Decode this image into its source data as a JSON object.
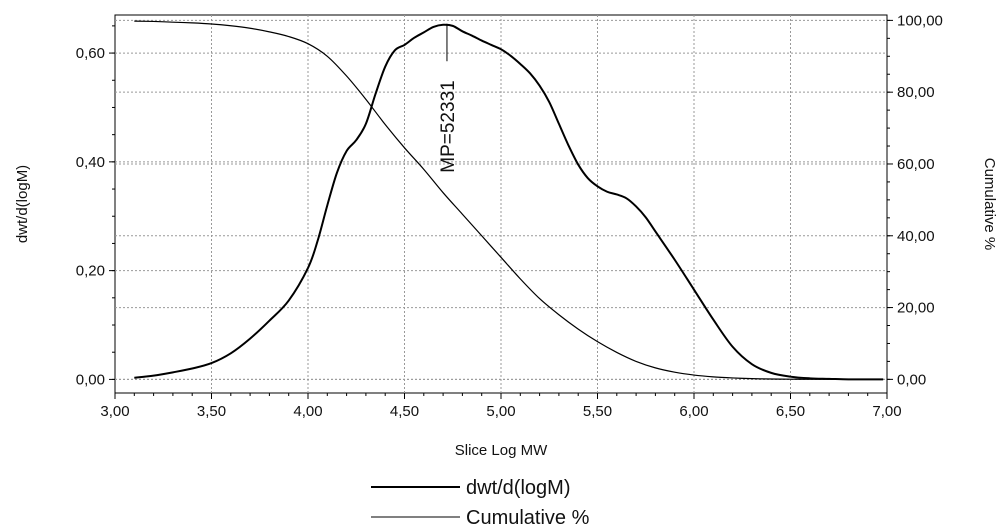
{
  "chart_data": {
    "type": "line",
    "title": "",
    "xlabel": "Slice Log MW",
    "ylabel_left": "dwt/d(logM)",
    "ylabel_right": "Cumulative %",
    "xlim": [
      3.0,
      7.0
    ],
    "ylim_left": [
      -0.025,
      0.67
    ],
    "ylim_right": [
      -3.8,
      101.5
    ],
    "grid": true,
    "legend_position": "bottom-center",
    "x_ticks": [
      3.0,
      3.5,
      4.0,
      4.5,
      5.0,
      5.5,
      6.0,
      6.5,
      7.0
    ],
    "x_tick_labels": [
      "3,00",
      "3,50",
      "4,00",
      "4,50",
      "5,00",
      "5,50",
      "6,00",
      "6,50",
      "7,00"
    ],
    "y_left_ticks": [
      0.0,
      0.2,
      0.4,
      0.6
    ],
    "y_left_tick_labels": [
      "0,00",
      "0,20",
      "0,40",
      "0,60"
    ],
    "y_right_ticks": [
      0,
      20,
      40,
      60,
      80,
      100
    ],
    "y_right_tick_labels": [
      "0,00",
      "20,00",
      "40,00",
      "60,00",
      "80,00",
      "100,00"
    ],
    "annotation": {
      "text": "MP=52331",
      "x": 4.72
    },
    "series": [
      {
        "name": "dwt/d(logM)",
        "axis": "left",
        "x": [
          3.1,
          3.2,
          3.3,
          3.4,
          3.5,
          3.6,
          3.7,
          3.8,
          3.9,
          4.0,
          4.05,
          4.1,
          4.15,
          4.2,
          4.25,
          4.3,
          4.35,
          4.4,
          4.45,
          4.5,
          4.55,
          4.6,
          4.65,
          4.7,
          4.75,
          4.8,
          4.85,
          4.9,
          4.95,
          5.0,
          5.05,
          5.1,
          5.15,
          5.2,
          5.25,
          5.3,
          5.35,
          5.4,
          5.45,
          5.5,
          5.55,
          5.6,
          5.65,
          5.7,
          5.75,
          5.8,
          5.9,
          6.0,
          6.1,
          6.2,
          6.3,
          6.4,
          6.5,
          6.6,
          6.7,
          6.8,
          6.9,
          6.98
        ],
        "y": [
          0.003,
          0.007,
          0.013,
          0.02,
          0.03,
          0.048,
          0.075,
          0.108,
          0.145,
          0.205,
          0.255,
          0.32,
          0.38,
          0.42,
          0.44,
          0.47,
          0.525,
          0.575,
          0.605,
          0.615,
          0.628,
          0.638,
          0.648,
          0.652,
          0.65,
          0.64,
          0.632,
          0.623,
          0.615,
          0.607,
          0.595,
          0.58,
          0.563,
          0.54,
          0.51,
          0.47,
          0.43,
          0.395,
          0.37,
          0.355,
          0.345,
          0.34,
          0.333,
          0.318,
          0.298,
          0.272,
          0.22,
          0.165,
          0.11,
          0.06,
          0.028,
          0.012,
          0.005,
          0.002,
          0.001,
          0.0,
          0.0,
          0.0
        ]
      },
      {
        "name": "Cumulative %",
        "axis": "right",
        "x": [
          3.1,
          3.2,
          3.3,
          3.4,
          3.5,
          3.6,
          3.7,
          3.8,
          3.9,
          4.0,
          4.1,
          4.2,
          4.3,
          4.4,
          4.5,
          4.6,
          4.7,
          4.8,
          4.9,
          5.0,
          5.1,
          5.2,
          5.3,
          5.4,
          5.5,
          5.6,
          5.7,
          5.8,
          5.9,
          6.0,
          6.1,
          6.2,
          6.3,
          6.4,
          6.5,
          6.6,
          6.7,
          6.8,
          6.9,
          6.98
        ],
        "y": [
          99.8,
          99.7,
          99.5,
          99.3,
          99.0,
          98.5,
          97.8,
          96.8,
          95.5,
          93.5,
          90.0,
          84.5,
          78.0,
          71.0,
          64.5,
          58.5,
          52.0,
          46.0,
          40.0,
          34.0,
          28.0,
          22.5,
          18.0,
          14.0,
          10.5,
          7.5,
          5.0,
          3.2,
          2.0,
          1.2,
          0.7,
          0.4,
          0.2,
          0.1,
          0.05,
          0.02,
          0.01,
          0.0,
          0.0,
          0.0
        ]
      }
    ]
  }
}
